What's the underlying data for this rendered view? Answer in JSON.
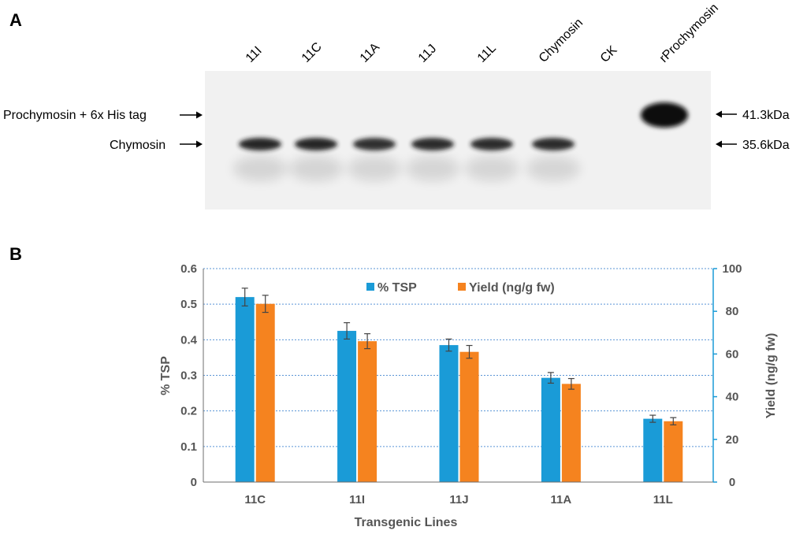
{
  "panel_a": {
    "letter": "A",
    "lanes": [
      {
        "label": "11I",
        "band_intensity": 0.95
      },
      {
        "label": "11C",
        "band_intensity": 0.95
      },
      {
        "label": "11A",
        "band_intensity": 0.9
      },
      {
        "label": "11J",
        "band_intensity": 0.92
      },
      {
        "label": "11L",
        "band_intensity": 0.92
      },
      {
        "label": "Chymosin",
        "band_intensity": 0.92
      },
      {
        "label": "CK",
        "band_intensity": 0
      },
      {
        "label": "rProchymosin",
        "band_intensity": 0
      }
    ],
    "left_markers": [
      {
        "label": "Prochymosin + 6x His tag"
      },
      {
        "label": "Chymosin"
      }
    ],
    "right_markers": [
      {
        "label": "41.3kDa"
      },
      {
        "label": "35.6kDa"
      }
    ]
  },
  "panel_b": {
    "letter": "B"
  },
  "chart_data": {
    "type": "bar",
    "categories": [
      "11C",
      "11I",
      "11J",
      "11A",
      "11L"
    ],
    "xlabel": "Transgenic Lines",
    "ylabel": "% TSP",
    "ylabel_right": "Yield (ng/g fw)",
    "ylim": [
      0,
      0.6
    ],
    "ylim_right": [
      0,
      100
    ],
    "yticks": [
      "0",
      "0.1",
      "0.2",
      "0.3",
      "0.4",
      "0.5",
      "0.6"
    ],
    "yticks_right": [
      "0",
      "20",
      "40",
      "60",
      "80",
      "100"
    ],
    "grid": true,
    "legend_position": "top",
    "series": [
      {
        "name": "% TSP",
        "axis": "left",
        "color": "#1a9bd7",
        "values": [
          0.52,
          0.425,
          0.385,
          0.293,
          0.178
        ],
        "errors": [
          0.025,
          0.023,
          0.017,
          0.015,
          0.01
        ]
      },
      {
        "name": "Yield (ng/g fw)",
        "axis": "right",
        "color": "#f5831f",
        "values": [
          83.5,
          66,
          61,
          46,
          28.5
        ],
        "errors": [
          4,
          3.5,
          3,
          2.5,
          1.7
        ]
      }
    ]
  }
}
